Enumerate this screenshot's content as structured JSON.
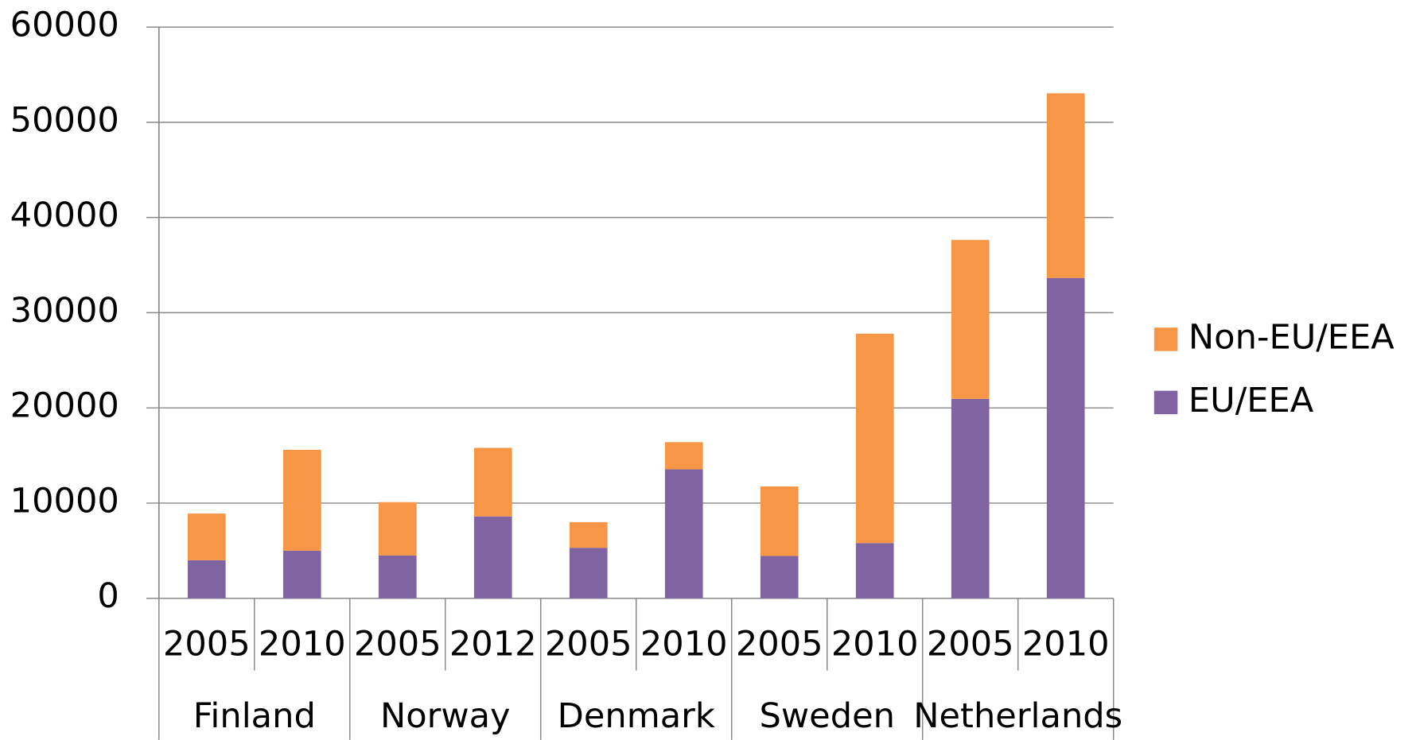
{
  "chart_data": {
    "type": "stacked-bar",
    "categories": [
      "2005",
      "2010",
      "2005",
      "2012",
      "2005",
      "2010",
      "2005",
      "2010",
      "2005",
      "2010"
    ],
    "groups": [
      "Finland",
      "Norway",
      "Denmark",
      "Sweden",
      "Netherlands"
    ],
    "series": [
      {
        "name": "EU/EEA",
        "color": "#8064a2",
        "values": [
          4000,
          5000,
          4500,
          8600,
          5300,
          13550,
          4450,
          5800,
          20950,
          33650
        ]
      },
      {
        "name": "Non-EU/EEA",
        "color": "#f79646",
        "values": [
          4900,
          10600,
          5600,
          7200,
          2700,
          2850,
          7300,
          22000,
          16700,
          19400
        ]
      }
    ],
    "ylim": [
      0,
      60000
    ],
    "yticks": [
      0,
      10000,
      20000,
      30000,
      40000,
      50000,
      60000
    ],
    "grid": true,
    "legend": "right"
  }
}
